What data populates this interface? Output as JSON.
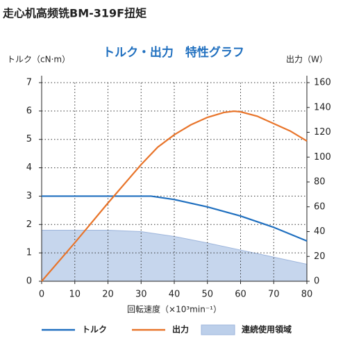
{
  "header": {
    "title": "走心机高频铣BM-319F扭矩"
  },
  "chart_data": {
    "type": "line",
    "title": "トルク・出力　特性グラフ",
    "ylabel": "トルク（cN·m）",
    "y2label": "出力（W）",
    "xlabel": "回転速度（×10³min⁻¹）",
    "xlim": [
      0,
      80
    ],
    "xticks": [
      0,
      10,
      20,
      30,
      40,
      50,
      60,
      70,
      80
    ],
    "ylim": [
      0,
      7
    ],
    "yticks": [
      0,
      1,
      2,
      3,
      4,
      5,
      6,
      7
    ],
    "y2lim": [
      0,
      160
    ],
    "y2ticks": [
      0,
      20,
      40,
      60,
      80,
      100,
      120,
      140,
      160
    ],
    "grid": true,
    "legend": "bottom",
    "series": [
      {
        "name": "トルク",
        "color": "#1f6fbf",
        "kind": "line",
        "axis": "y",
        "x": [
          0,
          10,
          20,
          30,
          33,
          40,
          50,
          60,
          70,
          80
        ],
        "values": [
          3,
          3,
          3,
          3,
          3,
          2.88,
          2.62,
          2.3,
          1.9,
          1.42
        ]
      },
      {
        "name": "出力",
        "color": "#e8742a",
        "kind": "line",
        "axis": "y2",
        "x": [
          0,
          10,
          20,
          30,
          35,
          40,
          45,
          50,
          55,
          58,
          60,
          65,
          70,
          75,
          80
        ],
        "values": [
          0,
          31,
          63,
          94,
          108,
          118,
          126,
          132,
          136,
          137,
          136.5,
          133,
          127,
          121,
          113
        ]
      },
      {
        "name": "連続使用領域",
        "color": "#bccfea",
        "kind": "area",
        "axis": "y",
        "x": [
          0,
          10,
          20,
          30,
          40,
          50,
          60,
          70,
          80
        ],
        "values": [
          1.8,
          1.8,
          1.8,
          1.75,
          1.58,
          1.35,
          1.1,
          0.85,
          0.6
        ]
      }
    ]
  }
}
